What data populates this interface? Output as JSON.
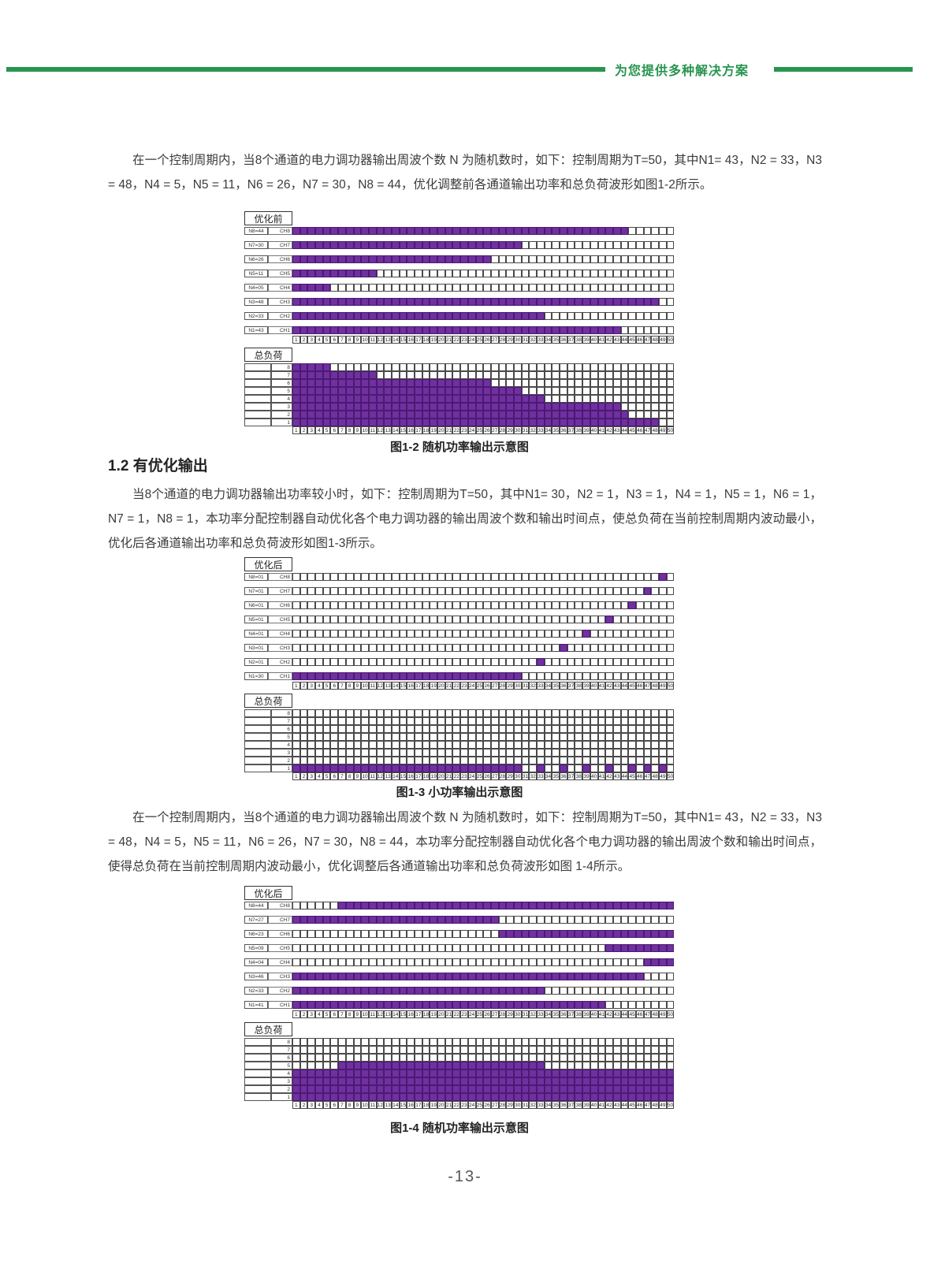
{
  "header": {
    "slogan": "为您提供多种解决方案",
    "accent_green": "#27954F"
  },
  "paragraphs": {
    "p1": "在一个控制周期内，当8个通道的电力调功器输出周波个数 N 为随机数时，如下：控制周期为T=50，其中N1= 43，N2 = 33，N3 = 48，N4 = 5，N5 = 11，N6 = 26，N7 = 30，N8 = 44，优化调整前各通道输出功率和总负荷波形如图1-2所示。",
    "p2": "当8个通道的电力调功器输出功率较小时，如下：控制周期为T=50，其中N1= 30，N2 = 1，N3 = 1，N4 = 1，N5 = 1，N6 = 1，N7 = 1，N8 = 1，本功率分配控制器自动优化各个电力调功器的输出周波个数和输出时间点，使总负荷在当前控制周期内波动最小，优化后各通道输出功率和总负荷波形如图1-3所示。",
    "p3": "在一个控制周期内，当8个通道的电力调功器输出周波个数 N 为随机数时，如下：控制周期为T=50，其中N1= 43，N2 = 33，N3 = 48，N4 = 5，N5 = 11，N6 = 26，N7 = 30，N8 = 44，本功率分配控制器自动优化各个电力调功器的输出周波个数和输出时间点，使得总负荷在当前控制周期内波动最小，优化调整后各通道输出功率和总负荷波形如图 1-4所示。"
  },
  "section": {
    "heading": "1.2 有优化输出"
  },
  "axis": {
    "ticks": [
      1,
      2,
      3,
      4,
      5,
      6,
      7,
      8,
      9,
      10,
      11,
      12,
      13,
      14,
      15,
      16,
      17,
      18,
      19,
      20,
      21,
      22,
      23,
      24,
      25,
      26,
      27,
      28,
      29,
      30,
      31,
      32,
      33,
      34,
      35,
      36,
      37,
      38,
      39,
      40,
      41,
      42,
      43,
      44,
      45,
      46,
      47,
      48,
      49,
      50
    ]
  },
  "colors": {
    "fill_purple": "#7030A0",
    "grid_line": "#4a4a4a"
  },
  "figures": [
    {
      "key": "fig_1_2",
      "corner_label": "优化前",
      "load_label": "总负荷",
      "caption": "图1-2 随机功率输出示意图",
      "channels": [
        {
          "n": "N8=44",
          "ch": "CH8",
          "runs": [
            [
              1,
              44
            ]
          ]
        },
        {
          "n": "N7=30",
          "ch": "CH7",
          "runs": [
            [
              1,
              30
            ]
          ]
        },
        {
          "n": "N6=26",
          "ch": "CH6",
          "runs": [
            [
              1,
              26
            ]
          ]
        },
        {
          "n": "N5=11",
          "ch": "CH5",
          "runs": [
            [
              1,
              11
            ]
          ]
        },
        {
          "n": "N4=05",
          "ch": "CH4",
          "runs": [
            [
              1,
              5
            ]
          ]
        },
        {
          "n": "N3=48",
          "ch": "CH3",
          "runs": [
            [
              1,
              48
            ]
          ]
        },
        {
          "n": "N2=33",
          "ch": "CH2",
          "runs": [
            [
              1,
              33
            ]
          ]
        },
        {
          "n": "N1=43",
          "ch": "CH1",
          "runs": [
            [
              1,
              43
            ]
          ]
        }
      ],
      "load_levels": [
        {
          "level": "8",
          "runs": [
            [
              1,
              5
            ]
          ]
        },
        {
          "level": "7",
          "runs": [
            [
              1,
              11
            ]
          ]
        },
        {
          "level": "6",
          "runs": [
            [
              1,
              26
            ]
          ]
        },
        {
          "level": "5",
          "runs": [
            [
              1,
              30
            ]
          ]
        },
        {
          "level": "4",
          "runs": [
            [
              1,
              33
            ]
          ]
        },
        {
          "level": "3",
          "runs": [
            [
              1,
              43
            ]
          ]
        },
        {
          "level": "2",
          "runs": [
            [
              1,
              44
            ]
          ]
        },
        {
          "level": "1",
          "runs": [
            [
              1,
              48
            ]
          ]
        }
      ]
    },
    {
      "key": "fig_1_3",
      "corner_label": "优化后",
      "load_label": "总负荷",
      "caption": "图1-3 小功率输出示意图",
      "channels": [
        {
          "n": "N8=01",
          "ch": "CH8",
          "runs": [
            [
              49,
              49
            ]
          ]
        },
        {
          "n": "N7=01",
          "ch": "CH7",
          "runs": [
            [
              47,
              47
            ]
          ]
        },
        {
          "n": "N6=01",
          "ch": "CH6",
          "runs": [
            [
              45,
              45
            ]
          ]
        },
        {
          "n": "N5=01",
          "ch": "CH5",
          "runs": [
            [
              42,
              42
            ]
          ]
        },
        {
          "n": "N4=01",
          "ch": "CH4",
          "runs": [
            [
              39,
              39
            ]
          ]
        },
        {
          "n": "N3=01",
          "ch": "CH3",
          "runs": [
            [
              36,
              36
            ]
          ]
        },
        {
          "n": "N2=01",
          "ch": "CH2",
          "runs": [
            [
              33,
              33
            ]
          ]
        },
        {
          "n": "N1=30",
          "ch": "CH1",
          "runs": [
            [
              1,
              30
            ]
          ]
        }
      ],
      "load_levels": [
        {
          "level": "8",
          "runs": []
        },
        {
          "level": "7",
          "runs": []
        },
        {
          "level": "6",
          "runs": []
        },
        {
          "level": "5",
          "runs": []
        },
        {
          "level": "4",
          "runs": []
        },
        {
          "level": "3",
          "runs": []
        },
        {
          "level": "2",
          "runs": []
        },
        {
          "level": "1",
          "runs": [
            [
              1,
              30
            ],
            [
              33,
              33
            ],
            [
              36,
              36
            ],
            [
              39,
              39
            ],
            [
              42,
              42
            ],
            [
              45,
              45
            ],
            [
              47,
              47
            ],
            [
              49,
              49
            ]
          ]
        }
      ]
    },
    {
      "key": "fig_1_4",
      "corner_label": "优化后",
      "load_label": "总负荷",
      "caption": "图1-4 随机功率输出示意图",
      "channels": [
        {
          "n": "N8=44",
          "ch": "CH8",
          "runs": [
            [
              7,
              50
            ]
          ]
        },
        {
          "n": "N7=27",
          "ch": "CH7",
          "runs": [
            [
              1,
              27
            ]
          ]
        },
        {
          "n": "N6=23",
          "ch": "CH6",
          "runs": [
            [
              28,
              50
            ]
          ]
        },
        {
          "n": "N5=09",
          "ch": "CH5",
          "runs": [
            [
              42,
              50
            ]
          ]
        },
        {
          "n": "N4=04",
          "ch": "CH4",
          "runs": [
            [
              47,
              50
            ]
          ]
        },
        {
          "n": "N3=46",
          "ch": "CH3",
          "runs": [
            [
              1,
              46
            ]
          ]
        },
        {
          "n": "N2=33",
          "ch": "CH2",
          "runs": [
            [
              1,
              33
            ]
          ]
        },
        {
          "n": "N1=41",
          "ch": "CH1",
          "runs": [
            [
              1,
              41
            ]
          ]
        }
      ],
      "load_levels": [
        {
          "level": "8",
          "runs": []
        },
        {
          "level": "7",
          "runs": []
        },
        {
          "level": "6",
          "runs": []
        },
        {
          "level": "5",
          "runs": [
            [
              7,
              33
            ]
          ]
        },
        {
          "level": "4",
          "runs": [
            [
              1,
              50
            ]
          ]
        },
        {
          "level": "3",
          "runs": [
            [
              1,
              50
            ]
          ]
        },
        {
          "level": "2",
          "runs": [
            [
              1,
              50
            ]
          ]
        },
        {
          "level": "1",
          "runs": [
            [
              1,
              50
            ]
          ]
        }
      ]
    }
  ],
  "footer": {
    "page_number": "-13-"
  }
}
